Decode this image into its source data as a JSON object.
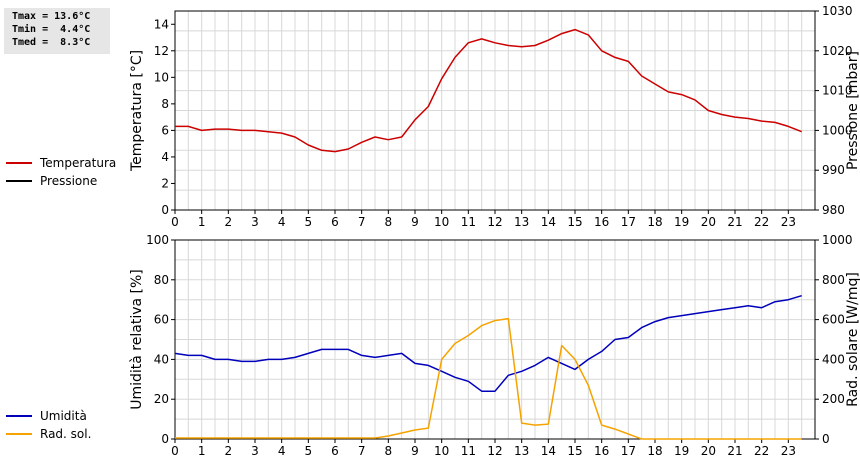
{
  "stats": {
    "lines": [
      "Tmax = 13.6°C",
      "Tmin =  4.4°C",
      "Tmed =  8.3°C"
    ]
  },
  "colors": {
    "temperature": "#cc0000",
    "pressure": "#000000",
    "humidity": "#0000bb",
    "radiation": "#f5a300",
    "grid": "#d8d8d8"
  },
  "chart_data": [
    {
      "type": "line",
      "xlabel": "",
      "ylabel": "Temperatura [°C]",
      "y2label": "Pressione [mbar]",
      "xlim": [
        0,
        24
      ],
      "ylim": [
        0,
        15
      ],
      "y2lim": [
        980,
        1030
      ],
      "xticks": [
        0,
        1,
        2,
        3,
        4,
        5,
        6,
        7,
        8,
        9,
        10,
        11,
        12,
        13,
        14,
        15,
        16,
        17,
        18,
        19,
        20,
        21,
        22,
        23
      ],
      "yticks": [
        0,
        2,
        4,
        6,
        8,
        10,
        12,
        14
      ],
      "y2ticks": [
        980,
        990,
        1000,
        1010,
        1020,
        1030
      ],
      "grid": true,
      "legend": "left",
      "series": [
        {
          "name": "Temperatura",
          "axis": "left",
          "x": [
            0,
            0.5,
            1,
            1.5,
            2,
            2.5,
            3,
            3.5,
            4,
            4.5,
            5,
            5.5,
            6,
            6.5,
            7,
            7.5,
            8,
            8.5,
            9,
            9.5,
            10,
            10.5,
            11,
            11.5,
            12,
            12.5,
            13,
            13.5,
            14,
            14.5,
            15,
            15.5,
            16,
            16.5,
            17,
            17.5,
            18,
            18.5,
            19,
            19.5,
            20,
            20.5,
            21,
            21.5,
            22,
            22.5,
            23,
            23.5
          ],
          "values": [
            6.3,
            6.3,
            6.0,
            6.1,
            6.1,
            6.0,
            6.0,
            5.9,
            5.8,
            5.5,
            4.9,
            4.5,
            4.4,
            4.6,
            5.1,
            5.5,
            5.3,
            5.5,
            6.8,
            7.8,
            9.9,
            11.5,
            12.6,
            12.9,
            12.6,
            12.4,
            12.3,
            12.4,
            12.8,
            13.3,
            13.6,
            13.2,
            12.0,
            11.5,
            11.2,
            10.1,
            9.5,
            8.9,
            8.7,
            8.3,
            7.5,
            7.2,
            7.0,
            6.9,
            6.7,
            6.6,
            6.3,
            5.9
          ]
        },
        {
          "name": "Pressione",
          "axis": "right",
          "x": [],
          "values": []
        }
      ]
    },
    {
      "type": "line",
      "xlabel": "",
      "ylabel": "Umidità relativa [%]",
      "y2label": "Rad. solare [W/mq]",
      "xlim": [
        0,
        24
      ],
      "ylim": [
        0,
        100
      ],
      "y2lim": [
        0,
        1000
      ],
      "xticks": [
        0,
        1,
        2,
        3,
        4,
        5,
        6,
        7,
        8,
        9,
        10,
        11,
        12,
        13,
        14,
        15,
        16,
        17,
        18,
        19,
        20,
        21,
        22,
        23
      ],
      "yticks": [
        0,
        20,
        40,
        60,
        80,
        100
      ],
      "y2ticks": [
        0,
        200,
        400,
        600,
        800,
        1000
      ],
      "grid": true,
      "legend": "left",
      "series": [
        {
          "name": "Umidità",
          "axis": "left",
          "x": [
            0,
            0.5,
            1,
            1.5,
            2,
            2.5,
            3,
            3.5,
            4,
            4.5,
            5,
            5.5,
            6,
            6.5,
            7,
            7.5,
            8,
            8.5,
            9,
            9.5,
            10,
            10.5,
            11,
            11.5,
            12,
            12.5,
            13,
            13.5,
            14,
            14.5,
            15,
            15.5,
            16,
            16.5,
            17,
            17.5,
            18,
            18.5,
            19,
            19.5,
            20,
            20.5,
            21,
            21.5,
            22,
            22.5,
            23,
            23.5
          ],
          "values": [
            43,
            42,
            42,
            40,
            40,
            39,
            39,
            40,
            40,
            41,
            43,
            45,
            45,
            45,
            42,
            41,
            42,
            43,
            38,
            37,
            34,
            31,
            29,
            24,
            24,
            32,
            34,
            37,
            41,
            38,
            35,
            40,
            44,
            50,
            51,
            56,
            59,
            61,
            62,
            63,
            64,
            65,
            66,
            67,
            66,
            69,
            70,
            72
          ]
        },
        {
          "name": "Rad. sol.",
          "axis": "right",
          "x": [
            0,
            0.5,
            1,
            1.5,
            2,
            2.5,
            3,
            3.5,
            4,
            4.5,
            5,
            5.5,
            6,
            6.5,
            7,
            7.5,
            8,
            8.5,
            9,
            9.5,
            10,
            10.5,
            11,
            11.5,
            12,
            12.5,
            13,
            13.5,
            14,
            14.5,
            15,
            15.5,
            16,
            16.5,
            17,
            17.5,
            18,
            18.5,
            19,
            19.5,
            20,
            20.5,
            21,
            21.5,
            22,
            22.5,
            23,
            23.5
          ],
          "values": [
            5,
            5,
            5,
            5,
            5,
            5,
            5,
            5,
            5,
            5,
            5,
            5,
            5,
            5,
            5,
            5,
            15,
            30,
            45,
            55,
            400,
            480,
            520,
            570,
            595,
            605,
            80,
            70,
            75,
            470,
            400,
            270,
            70,
            50,
            25,
            0,
            0,
            0,
            0,
            0,
            0,
            0,
            0,
            0,
            0,
            0,
            0,
            0
          ]
        }
      ]
    }
  ]
}
